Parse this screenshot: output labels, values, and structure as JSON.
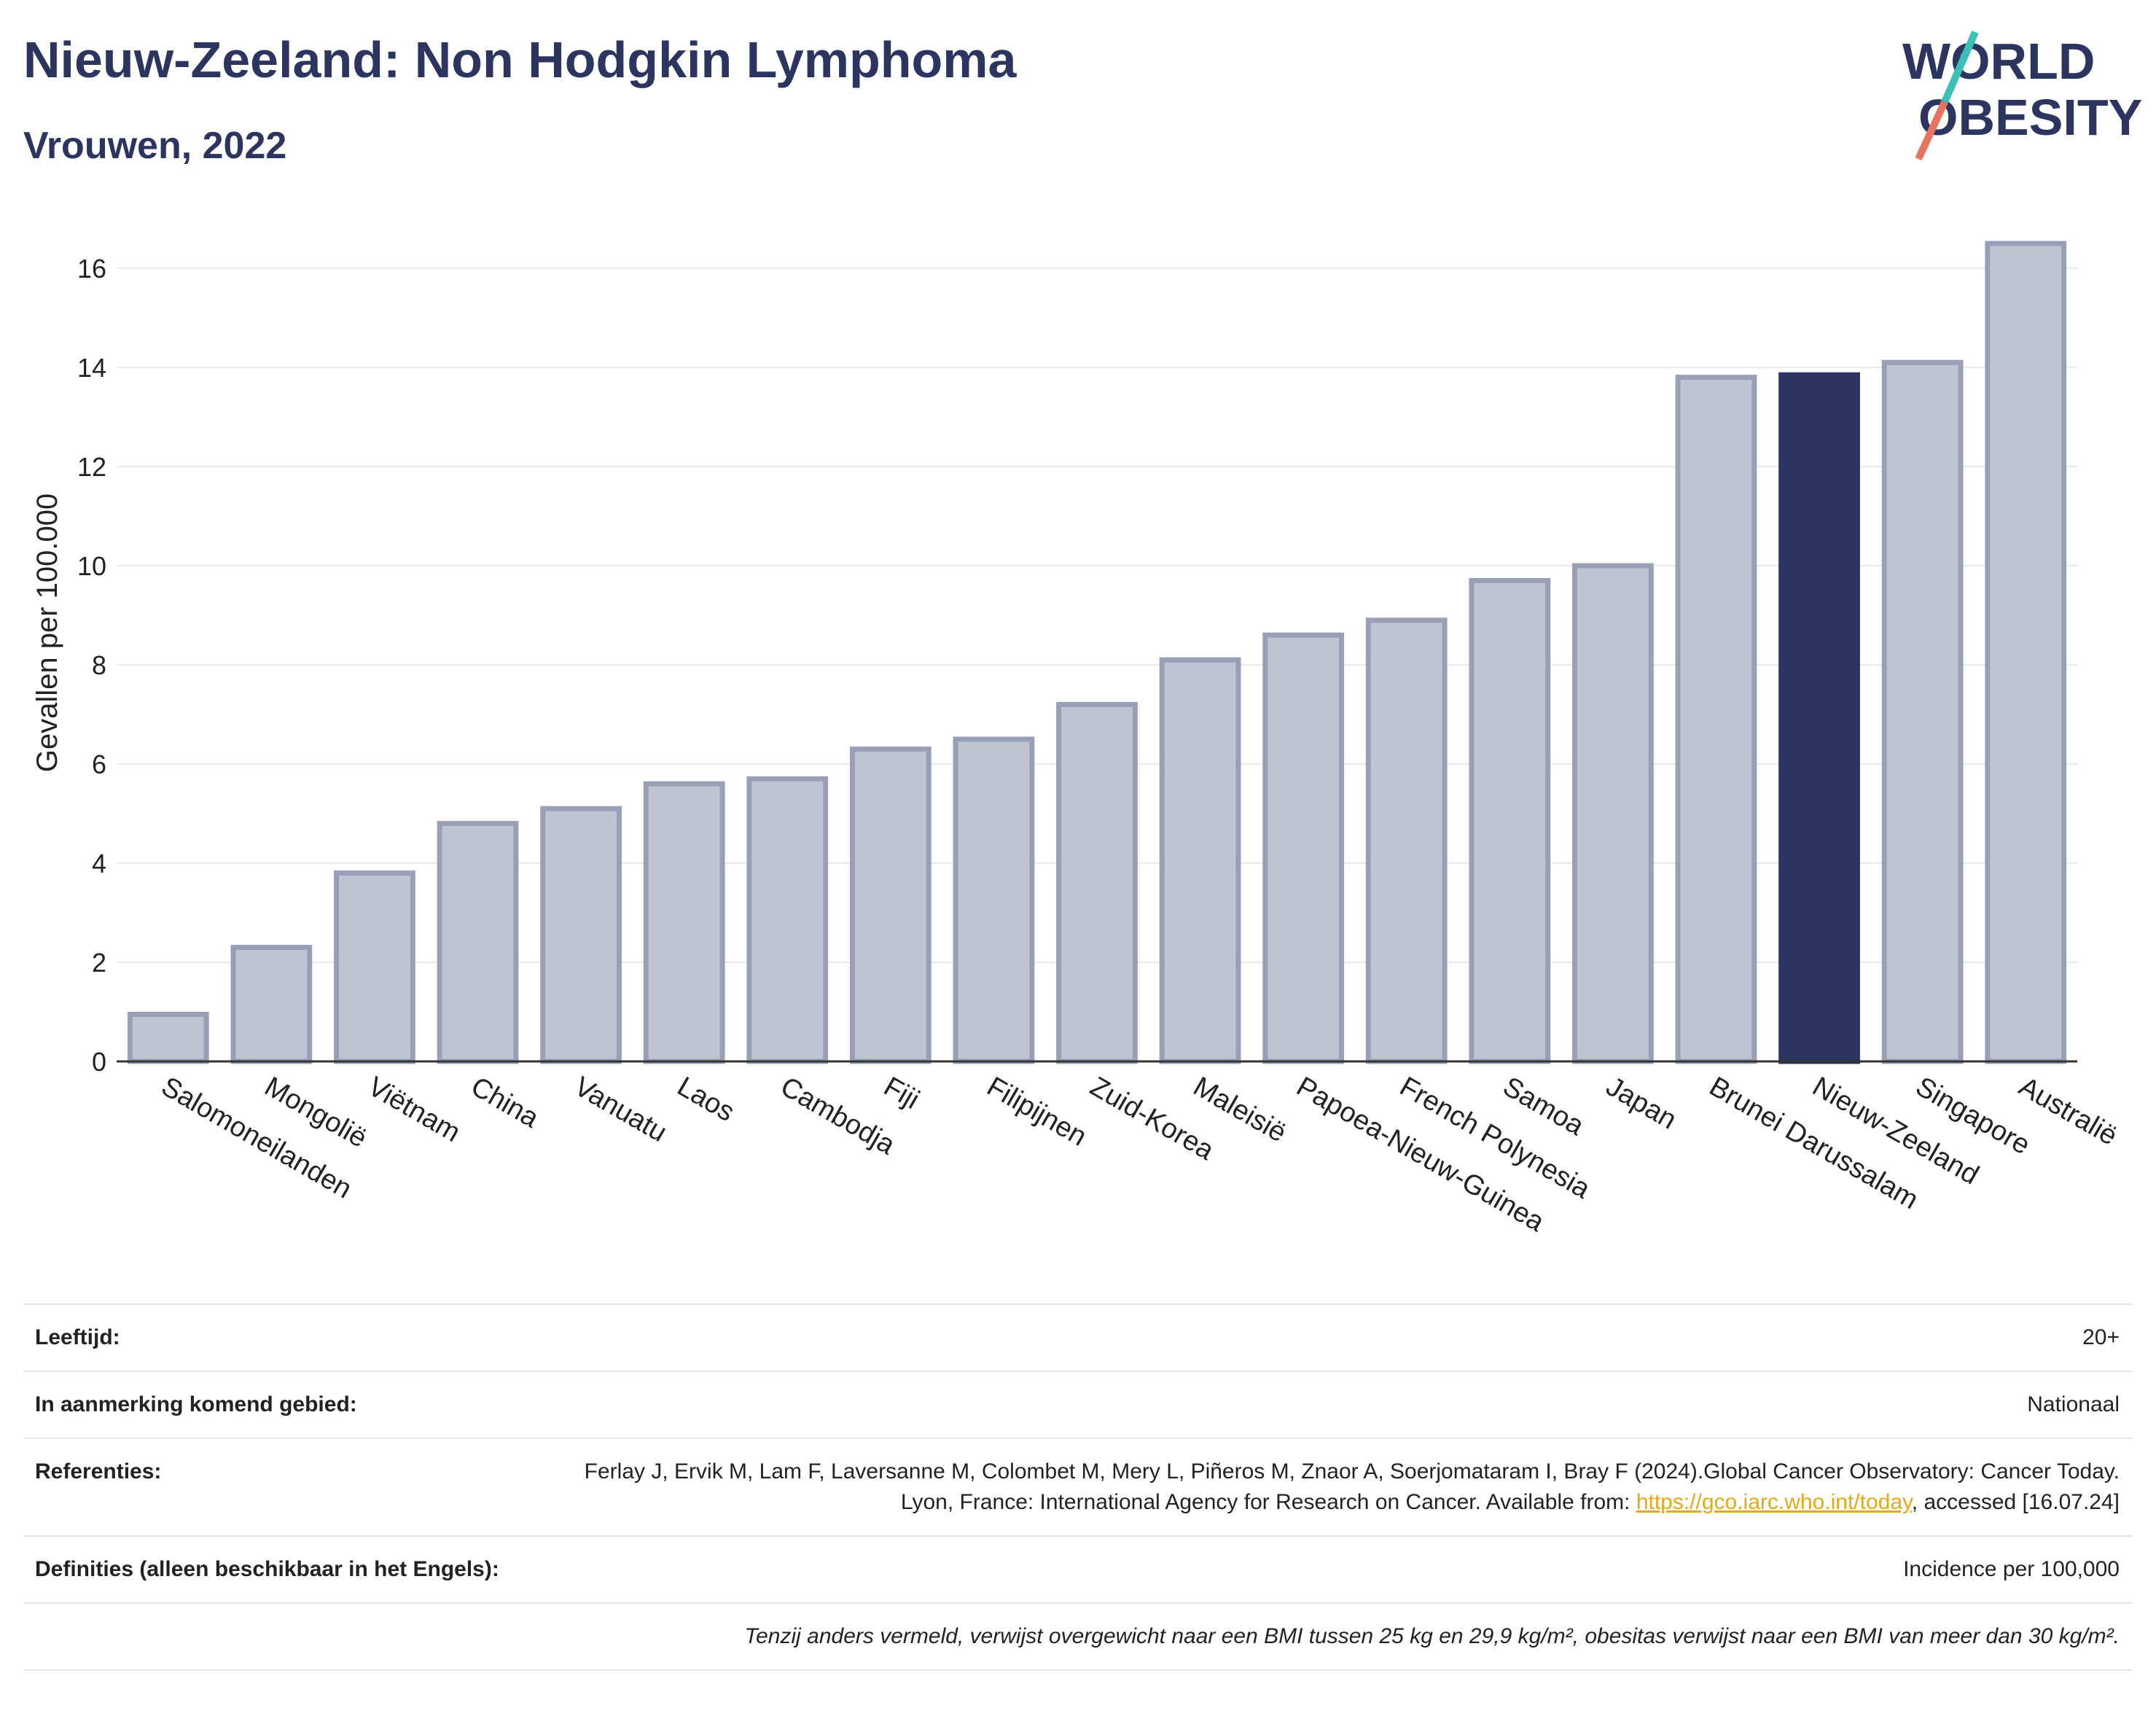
{
  "header": {
    "title": "Nieuw-Zeeland: Non Hodgkin Lymphoma",
    "subtitle": "Vrouwen, 2022"
  },
  "logo": {
    "line1": "WORLD",
    "line2": "OBESITY"
  },
  "chart_data": {
    "type": "bar",
    "ylabel": "Gevallen per 100.000",
    "ylim": [
      0,
      17
    ],
    "yticks": [
      0,
      2,
      4,
      6,
      8,
      10,
      12,
      14,
      16
    ],
    "grid": true,
    "categories": [
      "Salomoneilanden",
      "Mongolië",
      "Viëtnam",
      "China",
      "Vanuatu",
      "Laos",
      "Cambodja",
      "Fiji",
      "Filipijnen",
      "Zuid-Korea",
      "Maleisië",
      "Papoea-Nieuw-Guinea",
      "French Polynesia",
      "Samoa",
      "Japan",
      "Brunei Darussalam",
      "Nieuw-Zeeland",
      "Singapore",
      "Australië"
    ],
    "values": [
      0.95,
      2.3,
      3.8,
      4.8,
      5.1,
      5.6,
      5.7,
      6.3,
      6.5,
      7.2,
      8.1,
      8.6,
      8.9,
      9.7,
      10.0,
      13.8,
      13.85,
      14.1,
      16.5
    ],
    "highlight": "Nieuw-Zeeland",
    "colors": {
      "default_fill": "#c0c3d0",
      "default_stroke": "#9a9fb8",
      "highlight_fill": "#2b3560",
      "grid": "#e8e8ee",
      "axis": "#333333"
    }
  },
  "info": {
    "age_label": "Leeftijd:",
    "age_value": "20+",
    "area_label": "In aanmerking komend gebied:",
    "area_value": "Nationaal",
    "ref_label": "Referenties:",
    "ref_text": "Ferlay J, Ervik M, Lam F, Laversanne M, Colombet M, Mery L, Piñeros M, Znaor A, Soerjomataram I, Bray F (2024).Global Cancer Observatory: Cancer Today. Lyon, France: International Agency for Research on Cancer. Available from:",
    "ref_link": "https://gco.iarc.who.int/today",
    "ref_suffix": ", accessed [16.07.24]",
    "def_label": "Definities (alleen beschikbaar in het Engels):",
    "def_value": "Incidence per 100,000",
    "note": "Tenzij anders vermeld, verwijst overgewicht naar een BMI tussen 25 kg en 29,9 kg/m², obesitas verwijst naar een BMI van meer dan 30 kg/m²."
  }
}
